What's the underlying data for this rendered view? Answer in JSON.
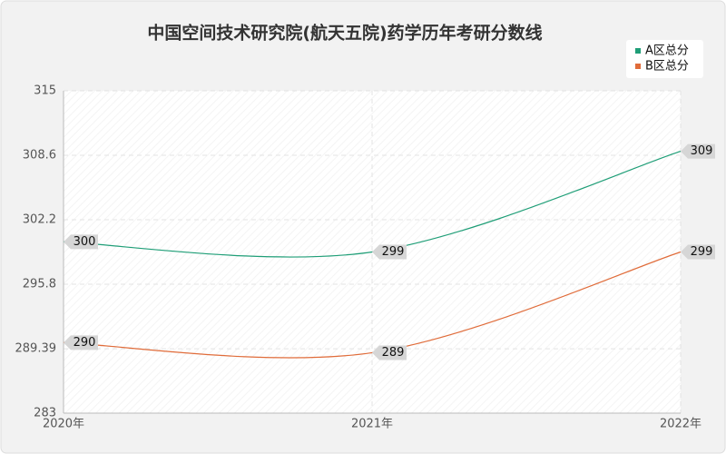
{
  "chart_data": {
    "type": "line",
    "title": "中国空间技术研究院(航天五院)药学历年考研分数线",
    "categories": [
      "2020年",
      "2021年",
      "2022年"
    ],
    "series": [
      {
        "name": "A区总分",
        "color": "#1f9e77",
        "values": [
          300,
          299,
          309
        ]
      },
      {
        "name": "B区总分",
        "color": "#e06c3a",
        "values": [
          290,
          289,
          299
        ]
      }
    ],
    "ylim": [
      283,
      315
    ],
    "yticks": [
      283,
      289.39,
      295.8,
      302.2,
      308.6,
      315
    ],
    "grid": true,
    "legend": "top-right"
  }
}
